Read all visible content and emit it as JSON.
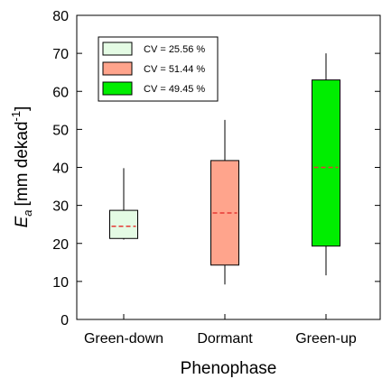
{
  "chart_data": {
    "type": "box",
    "xlabel": "Phenophase",
    "ylabel": "E",
    "ylabel_sub": "a",
    "ylabel_unit": "[mm dekad",
    "ylabel_exp": "-1",
    "ylabel_close": "]",
    "ylim": [
      0,
      80
    ],
    "yticks": [
      "0",
      "10",
      "20",
      "30",
      "40",
      "50",
      "60",
      "70",
      "80"
    ],
    "grid": false,
    "legend_position": "top-left",
    "categories": [
      "Green-down",
      "Dormant",
      "Green-up"
    ],
    "series": [
      {
        "name": "CV = 25.56 %",
        "color": "#e4fbe4",
        "whisker_low": 21.0,
        "q1": 21.3,
        "median": 24.5,
        "q3": 28.7,
        "whisker_high": 39.8
      },
      {
        "name": "CV = 51.44 %",
        "color": "#ffa48c",
        "whisker_low": 9.2,
        "q1": 14.3,
        "median": 28.0,
        "q3": 41.8,
        "whisker_high": 52.5
      },
      {
        "name": "CV = 49.45 %",
        "color": "#00ee00",
        "whisker_low": 11.6,
        "q1": 19.3,
        "median": 40.0,
        "q3": 63.0,
        "whisker_high": 70.0
      }
    ],
    "median_line_color": "#e53935"
  }
}
